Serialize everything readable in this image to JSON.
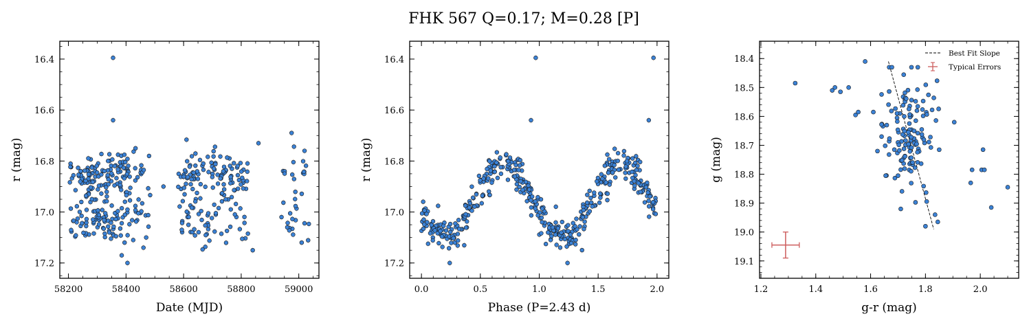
{
  "figure": {
    "title": "FHK 567  Q=0.17; M=0.28 [P]",
    "point_color": "#3b82d6",
    "point_edge": "#1a1a1a",
    "error_color": "#cd5c5c"
  },
  "chart_data": [
    {
      "type": "scatter",
      "xlabel": "Date (MJD)",
      "ylabel": "r (mag)",
      "xlim": [
        58170,
        59070
      ],
      "ylim": [
        17.26,
        16.33
      ],
      "y_inverted": true,
      "xticks": [
        58200,
        58400,
        58600,
        58800,
        59000
      ],
      "yticks": [
        16.4,
        16.6,
        16.8,
        17.0,
        17.2
      ],
      "xtick_labels": [
        "58200",
        "58400",
        "58600",
        "58800",
        "59000"
      ],
      "ytick_labels": [
        "16.4",
        "16.6",
        "16.8",
        "17.0",
        "17.2"
      ],
      "points": [
        [
          58355,
          16.395
        ],
        [
          58355,
          16.64
        ],
        [
          58405,
          17.2
        ],
        [
          58840,
          17.15
        ],
        [
          58860,
          16.73
        ],
        [
          58975,
          16.69
        ],
        [
          59020,
          16.76
        ],
        [
          59010,
          17.12
        ],
        [
          58960,
          17.06
        ],
        [
          58940,
          17.02
        ],
        [
          58480,
          16.78
        ],
        [
          58470,
          17.1
        ],
        [
          58425,
          17.11
        ],
        [
          58385,
          17.17
        ],
        [
          58395,
          17.12
        ],
        [
          58530,
          16.9
        ]
      ],
      "clusters": [
        {
          "x_range": [
            58205,
            58415
          ],
          "y_range": [
            16.74,
            17.17
          ],
          "count": 210
        },
        {
          "x_range": [
            58420,
            58485
          ],
          "y_range": [
            16.75,
            17.14
          ],
          "count": 28
        },
        {
          "x_range": [
            58580,
            58825
          ],
          "y_range": [
            16.7,
            17.16
          ],
          "count": 165
        },
        {
          "x_range": [
            58945,
            59035
          ],
          "y_range": [
            16.68,
            17.13
          ],
          "count": 30
        }
      ]
    },
    {
      "type": "scatter",
      "xlabel": "Phase (P=2.43 d)",
      "ylabel": "r (mag)",
      "xlim": [
        -0.1,
        2.1
      ],
      "ylim": [
        17.26,
        16.33
      ],
      "y_inverted": true,
      "xticks": [
        0.0,
        0.5,
        1.0,
        1.5,
        2.0
      ],
      "yticks": [
        16.4,
        16.6,
        16.8,
        17.0,
        17.2
      ],
      "xtick_labels": [
        "0.0",
        "0.5",
        "1.0",
        "1.5",
        "2.0"
      ],
      "ytick_labels": [
        "16.4",
        "16.6",
        "16.8",
        "17.0",
        "17.2"
      ],
      "curve": {
        "mean": 16.955,
        "amplitude": 0.135,
        "phase_of_min": 0.2,
        "scatter": 0.035
      },
      "points": [
        [
          0.97,
          16.395
        ],
        [
          1.97,
          16.395
        ],
        [
          0.93,
          16.64
        ],
        [
          1.93,
          16.64
        ],
        [
          0.24,
          17.2
        ],
        [
          1.24,
          17.2
        ]
      ],
      "n_points_per_cycle": 230
    },
    {
      "type": "scatter",
      "xlabel": "g-r (mag)",
      "ylabel": "g (mag)",
      "xlim": [
        1.195,
        2.14
      ],
      "ylim": [
        19.16,
        18.34
      ],
      "y_inverted": true,
      "xticks": [
        1.2,
        1.4,
        1.6,
        1.8,
        2.0
      ],
      "yticks": [
        18.4,
        18.5,
        18.6,
        18.7,
        18.8,
        18.9,
        19.0,
        19.1
      ],
      "xtick_labels": [
        "1.2",
        "1.4",
        "1.6",
        "1.8",
        "2.0"
      ],
      "ytick_labels": [
        "18.4",
        "18.5",
        "18.6",
        "18.7",
        "18.8",
        "18.9",
        "19.0",
        "19.1"
      ],
      "fit_line": {
        "x": [
          1.665,
          1.83
        ],
        "y": [
          18.41,
          18.99
        ]
      },
      "typical_error": {
        "x": 1.29,
        "y": 19.045,
        "xerr": 0.05,
        "yerr": 0.045
      },
      "legend": {
        "position": "upper-right",
        "entries": [
          "Best Fit Slope",
          "Typical Errors"
        ]
      },
      "points": [
        [
          1.325,
          18.485
        ],
        [
          1.46,
          18.51
        ],
        [
          1.47,
          18.5
        ],
        [
          1.49,
          18.515
        ],
        [
          1.52,
          18.5
        ],
        [
          1.545,
          18.595
        ],
        [
          1.555,
          18.585
        ],
        [
          1.58,
          18.41
        ],
        [
          1.61,
          18.585
        ],
        [
          1.625,
          18.72
        ],
        [
          1.64,
          18.67
        ],
        [
          1.655,
          18.805
        ],
        [
          1.905,
          18.62
        ],
        [
          1.965,
          18.83
        ],
        [
          1.97,
          18.785
        ],
        [
          2.01,
          18.715
        ],
        [
          2.005,
          18.785
        ],
        [
          2.015,
          18.785
        ],
        [
          2.04,
          18.915
        ],
        [
          2.1,
          18.845
        ],
        [
          1.845,
          18.965
        ],
        [
          1.835,
          18.94
        ],
        [
          1.8,
          18.98
        ],
        [
          1.71,
          18.92
        ],
        [
          1.7,
          18.805
        ]
      ],
      "cluster": {
        "x_center": 1.74,
        "y_center": 18.65,
        "x_sd": 0.045,
        "y_sd": 0.11,
        "count": 130
      }
    }
  ]
}
